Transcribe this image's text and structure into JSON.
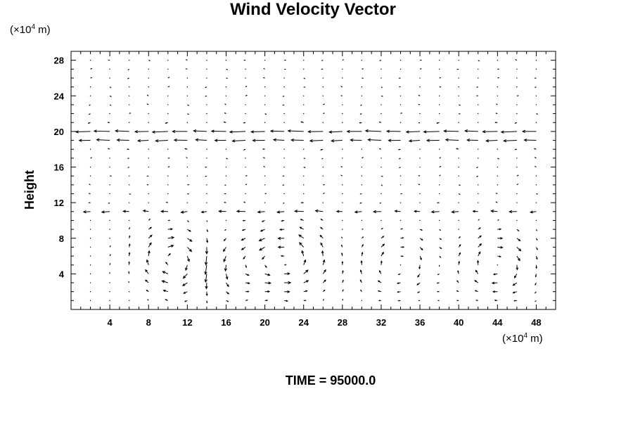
{
  "title": "Wind Velocity Vector",
  "time_label": "TIME = 95000.0",
  "chart_data": {
    "type": "vector_field",
    "title": "Wind Velocity Vector",
    "xlabel": "",
    "ylabel": "Height",
    "x_unit": {
      "prefix": "(×10",
      "exp": "4",
      "suffix": " m)"
    },
    "y_unit": {
      "prefix": "(×10",
      "exp": "4",
      "suffix": " m)"
    },
    "xlim": [
      0,
      50
    ],
    "ylim": [
      0,
      29
    ],
    "x_ticks": [
      4,
      8,
      12,
      16,
      20,
      24,
      28,
      32,
      36,
      40,
      44,
      48
    ],
    "y_ticks": [
      4,
      8,
      12,
      16,
      20,
      24,
      28
    ],
    "grid_spacing": {
      "x": 2,
      "y": 1
    },
    "annotation": "TIME = 95000.0",
    "vortices": [
      {
        "x": 11.0,
        "y": 5.5,
        "direction": "cw",
        "strength": 1.0
      },
      {
        "x": 22.5,
        "y": 5.5,
        "direction": "ccw",
        "strength": 1.0
      },
      {
        "x": 16.5,
        "y": 5.0,
        "direction": "ccw",
        "strength": 0.6
      },
      {
        "x": 44.0,
        "y": 5.0,
        "direction": "cw",
        "strength": 0.8
      },
      {
        "x": 34.0,
        "y": 5.0,
        "direction": "cw",
        "strength": 0.6
      }
    ],
    "jets": [
      {
        "y": 20,
        "u": -1.0
      },
      {
        "y": 19,
        "u": -0.8
      },
      {
        "y": 11,
        "u": -0.5
      }
    ]
  }
}
